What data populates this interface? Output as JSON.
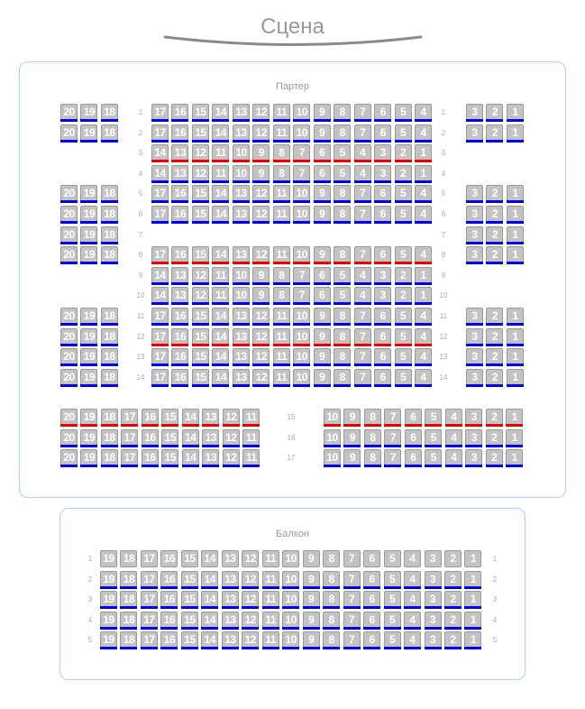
{
  "stage": {
    "title": "Сцена"
  },
  "colors": {
    "blue": "#0000ee",
    "red": "#ee0000",
    "none": "transparent",
    "seat": "#c3c3c3",
    "border": "#a8d4f8"
  },
  "parter": {
    "title": "Партер",
    "rows": [
      {
        "label": "1",
        "blocks": [
          {
            "kind": "left",
            "seats": [
              20,
              19,
              18
            ],
            "mark": "blue"
          },
          {
            "kind": "center",
            "seats": [
              17,
              16,
              15,
              14,
              13,
              12,
              11,
              10,
              9,
              8,
              7,
              6,
              5,
              4
            ],
            "mark": "blue"
          },
          {
            "kind": "right",
            "seats": [
              3,
              2,
              1
            ],
            "mark": "blue"
          }
        ]
      },
      {
        "label": "2",
        "blocks": [
          {
            "kind": "left",
            "seats": [
              20,
              19,
              18
            ],
            "mark": "blue"
          },
          {
            "kind": "center",
            "seats": [
              17,
              16,
              15,
              14,
              13,
              12,
              11,
              10,
              9,
              8,
              7,
              6,
              5,
              4
            ],
            "mark": "blue"
          },
          {
            "kind": "right",
            "seats": [
              3,
              2,
              1
            ],
            "mark": "blue"
          }
        ]
      },
      {
        "label": "3",
        "blocks": [
          {
            "kind": "center",
            "seats": [
              14,
              13,
              12,
              11,
              10,
              9,
              8,
              7,
              6,
              5,
              4,
              3,
              2,
              1
            ],
            "mark": "red"
          }
        ]
      },
      {
        "label": "4",
        "blocks": [
          {
            "kind": "center",
            "seats": [
              14,
              13,
              12,
              11,
              10,
              9,
              8,
              7,
              6,
              5,
              4,
              3,
              2,
              1
            ],
            "mark": "blue"
          }
        ]
      },
      {
        "label": "5",
        "blocks": [
          {
            "kind": "left",
            "seats": [
              20,
              19,
              18
            ],
            "mark": "blue"
          },
          {
            "kind": "center",
            "seats": [
              17,
              16,
              15,
              14,
              13,
              12,
              11,
              10,
              9,
              8,
              7,
              6,
              5,
              4
            ],
            "mark": "blue"
          },
          {
            "kind": "right",
            "seats": [
              3,
              2,
              1
            ],
            "mark": "blue"
          }
        ]
      },
      {
        "label": "6",
        "blocks": [
          {
            "kind": "left",
            "seats": [
              20,
              19,
              18
            ],
            "mark": "blue"
          },
          {
            "kind": "center",
            "seats": [
              17,
              16,
              15,
              14,
              13,
              12,
              11,
              10,
              9,
              8,
              7,
              6,
              5,
              4
            ],
            "mark": "blue"
          },
          {
            "kind": "right",
            "seats": [
              3,
              2,
              1
            ],
            "mark": "blue"
          }
        ]
      },
      {
        "label": "7",
        "blocks": [
          {
            "kind": "left",
            "seats": [
              20,
              19,
              18
            ],
            "mark": "blue"
          },
          {
            "kind": "right",
            "seats": [
              3,
              2,
              1
            ],
            "mark": "blue"
          }
        ]
      },
      {
        "label": "8",
        "blocks": [
          {
            "kind": "left",
            "seats": [
              20,
              19,
              18
            ],
            "mark": "blue"
          },
          {
            "kind": "center",
            "seats": [
              17,
              16,
              15,
              14,
              13,
              12,
              11,
              10,
              9,
              8,
              7,
              6,
              5,
              4
            ],
            "mark": "red"
          },
          {
            "kind": "right",
            "seats": [
              3,
              2,
              1
            ],
            "mark": "blue"
          }
        ]
      },
      {
        "label": "9",
        "blocks": [
          {
            "kind": "center",
            "seats": [
              14,
              13,
              12,
              11,
              10,
              9,
              8,
              7,
              6,
              5,
              4,
              3,
              2,
              1
            ],
            "mark": "blue"
          }
        ]
      },
      {
        "label": "10",
        "blocks": [
          {
            "kind": "center",
            "seats": [
              14,
              13,
              12,
              11,
              10,
              9,
              8,
              7,
              6,
              5,
              4,
              3,
              2,
              1
            ],
            "mark": "blue"
          }
        ]
      },
      {
        "label": "11",
        "blocks": [
          {
            "kind": "left",
            "seats": [
              20,
              19,
              18
            ],
            "mark": "blue"
          },
          {
            "kind": "center",
            "seats": [
              17,
              16,
              15,
              14,
              13,
              12,
              11,
              10,
              9,
              8,
              7,
              6,
              5,
              4
            ],
            "mark": "blue"
          },
          {
            "kind": "right",
            "seats": [
              3,
              2,
              1
            ],
            "mark": "blue"
          }
        ]
      },
      {
        "label": "12",
        "blocks": [
          {
            "kind": "left",
            "seats": [
              20,
              19,
              18
            ],
            "mark": "blue"
          },
          {
            "kind": "center",
            "seats": [
              17,
              16,
              15,
              14,
              13,
              12,
              11,
              10,
              9,
              8,
              7,
              6,
              5,
              4
            ],
            "mark": "red"
          },
          {
            "kind": "right",
            "seats": [
              3,
              2,
              1
            ],
            "mark": "blue"
          }
        ]
      },
      {
        "label": "13",
        "blocks": [
          {
            "kind": "left",
            "seats": [
              20,
              19,
              18
            ],
            "mark": "blue"
          },
          {
            "kind": "center",
            "seats": [
              17,
              16,
              15,
              14,
              13,
              12,
              11,
              10,
              9,
              8,
              7,
              6,
              5,
              4
            ],
            "mark": "blue"
          },
          {
            "kind": "right",
            "seats": [
              3,
              2,
              1
            ],
            "mark": "blue"
          }
        ]
      },
      {
        "label": "14",
        "blocks": [
          {
            "kind": "left",
            "seats": [
              20,
              19,
              18
            ],
            "mark": "blue"
          },
          {
            "kind": "center",
            "seats": [
              17,
              16,
              15,
              14,
              13,
              12,
              11,
              10,
              9,
              8,
              7,
              6,
              5,
              4
            ],
            "mark": "blue"
          },
          {
            "kind": "right",
            "seats": [
              3,
              2,
              1
            ],
            "mark": "blue"
          }
        ]
      },
      {
        "label": "15",
        "blocks": [
          {
            "kind": "left-wide",
            "seats": [
              20,
              19,
              18,
              17,
              16,
              15,
              14,
              13,
              12,
              11
            ],
            "mark": "red"
          },
          {
            "kind": "right-wide",
            "seats": [
              10,
              9,
              8,
              7,
              6,
              5,
              4,
              3,
              2,
              1
            ],
            "mark": "red"
          }
        ]
      },
      {
        "label": "16",
        "blocks": [
          {
            "kind": "left-wide",
            "seats": [
              20,
              19,
              18,
              17,
              16,
              15,
              14,
              13,
              12,
              11
            ],
            "mark": "blue"
          },
          {
            "kind": "right-wide",
            "seats": [
              10,
              9,
              8,
              7,
              6,
              5,
              4,
              3,
              2,
              1
            ],
            "mark": "blue"
          }
        ]
      },
      {
        "label": "17",
        "blocks": [
          {
            "kind": "left-wide",
            "seats": [
              20,
              19,
              18,
              17,
              16,
              15,
              14,
              13,
              12,
              11
            ],
            "mark": "blue"
          },
          {
            "kind": "right-wide",
            "seats": [
              10,
              9,
              8,
              7,
              6,
              5,
              4,
              3,
              2,
              1
            ],
            "mark": "blue"
          }
        ]
      }
    ]
  },
  "balcony": {
    "title": "Балкон",
    "rows": [
      {
        "label": "1",
        "blocks": [
          {
            "kind": "full",
            "seats": [
              19,
              18,
              17,
              16,
              15,
              14,
              13,
              12,
              11,
              10,
              9,
              8,
              7,
              6,
              5,
              4,
              3,
              2,
              1
            ],
            "mark": "none"
          }
        ]
      },
      {
        "label": "2",
        "blocks": [
          {
            "kind": "full",
            "seats": [
              19,
              18,
              17,
              16,
              15,
              14,
              13,
              12,
              11,
              10,
              9,
              8,
              7,
              6,
              5,
              4,
              3,
              2,
              1
            ],
            "mark": "blue"
          }
        ]
      },
      {
        "label": "3",
        "blocks": [
          {
            "kind": "full",
            "seats": [
              19,
              18,
              17,
              16,
              15,
              14,
              13,
              12,
              11,
              10,
              9,
              8,
              7,
              6,
              5,
              4,
              3,
              2,
              1
            ],
            "mark": "blue"
          }
        ]
      },
      {
        "label": "4",
        "blocks": [
          {
            "kind": "full",
            "seats": [
              19,
              18,
              17,
              16,
              15,
              14,
              13,
              12,
              11,
              10,
              9,
              8,
              7,
              6,
              5,
              4,
              3,
              2,
              1
            ],
            "mark": "blue"
          }
        ]
      },
      {
        "label": "5",
        "blocks": [
          {
            "kind": "full",
            "seats": [
              19,
              18,
              17,
              16,
              15,
              14,
              13,
              12,
              11,
              10,
              9,
              8,
              7,
              6,
              5,
              4,
              3,
              2,
              1
            ],
            "mark": "blue"
          }
        ]
      }
    ]
  }
}
